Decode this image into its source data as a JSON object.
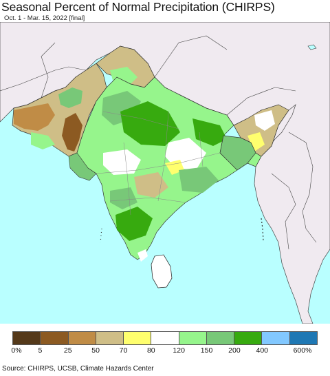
{
  "title": "Seasonal Percent of Normal Precipitation (CHIRPS)",
  "subtitle": "Oct. 1 - Mar. 15, 2022 [final]",
  "map": {
    "colors": {
      "ocean": "#b9ffff",
      "land_outside": "#f0eaf0",
      "border": "#333333",
      "state_border": "#888888"
    }
  },
  "legend": {
    "colors": [
      "#54391a",
      "#8c5a22",
      "#c08c46",
      "#cfbe87",
      "#ffff6e",
      "#ffffff",
      "#96f58c",
      "#78c878",
      "#37aa0f",
      "#82c8ff",
      "#1f78b4"
    ],
    "labels": [
      "0%",
      "5",
      "25",
      "50",
      "70",
      "80",
      "120",
      "150",
      "200",
      "400",
      "600%"
    ]
  },
  "source": "Source: CHIRPS, UCSB, Climate Hazards Center"
}
